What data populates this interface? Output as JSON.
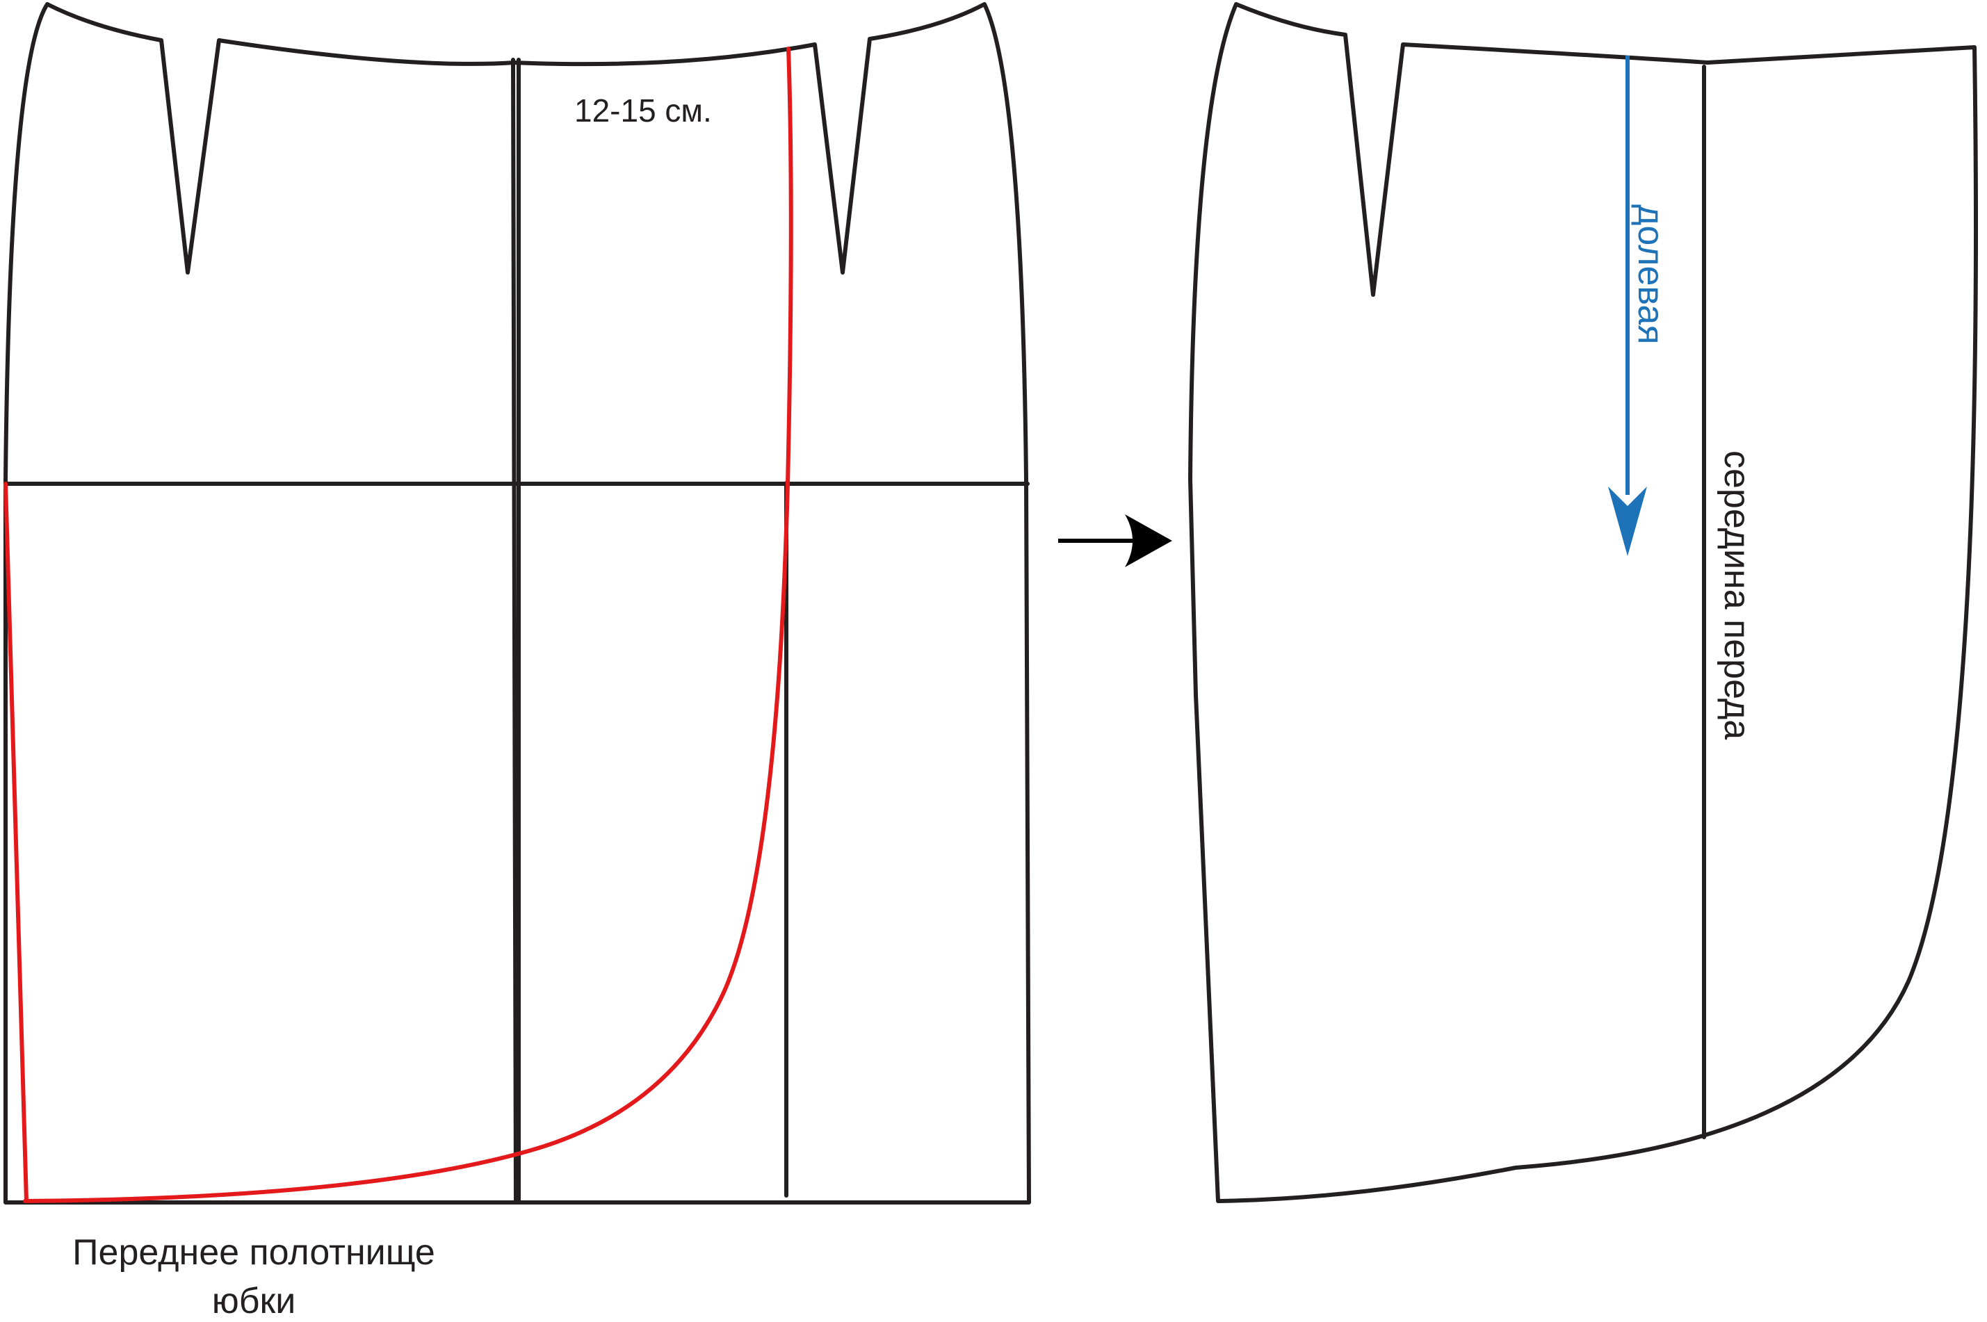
{
  "labels": {
    "measure": "12-15 см.",
    "caption_line_1": "Переднее полотнище",
    "caption_line_2": "юбки",
    "grainline": "долевая",
    "center_front": "середина переда"
  },
  "colors": {
    "outline": "#231f20",
    "cut_line": "#e3191b",
    "grainline": "#1d72b8",
    "background": "#ffffff"
  }
}
